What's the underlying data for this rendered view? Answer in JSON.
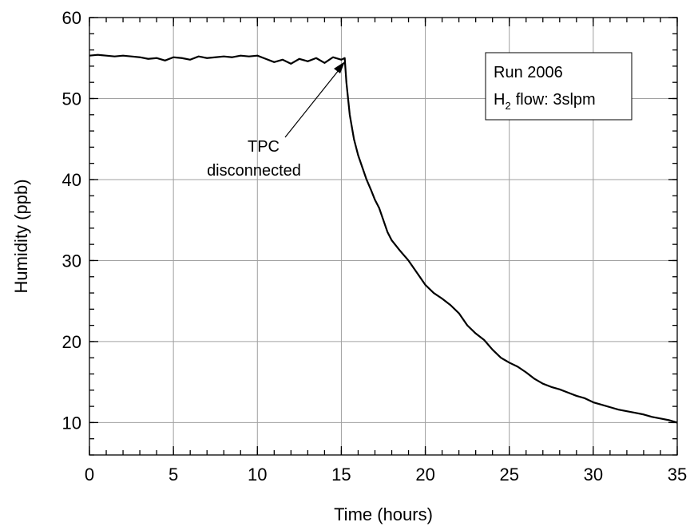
{
  "chart_data": {
    "type": "line",
    "xlabel": "Time (hours)",
    "ylabel": "Humidity (ppb)",
    "annotations": {
      "box_line1": "Run 2006",
      "box_line2_pre": "H",
      "box_line2_sub": "2",
      "box_line2_post": "flow: 3slpm",
      "arrow_line1": "TPC",
      "arrow_line2": "disconnected"
    },
    "xlim": [
      0,
      35
    ],
    "ylim": [
      6,
      60
    ],
    "xticks": [
      0,
      5,
      10,
      15,
      20,
      25,
      30,
      35
    ],
    "yticks": [
      10,
      20,
      30,
      40,
      50,
      60
    ],
    "x_minor_ticks": [
      0,
      1,
      2,
      3,
      4,
      5,
      6,
      7,
      8,
      9,
      10,
      11,
      12,
      13,
      14,
      15,
      16,
      17,
      18,
      19,
      20,
      21,
      22,
      23,
      24,
      25,
      26,
      27,
      28,
      29,
      30,
      31,
      32,
      33,
      34,
      35
    ],
    "y_minor_ticks": [
      6,
      8,
      10,
      12,
      14,
      16,
      18,
      20,
      22,
      24,
      26,
      28,
      30,
      32,
      34,
      36,
      38,
      40,
      42,
      44,
      46,
      48,
      50,
      52,
      54,
      56,
      58,
      60
    ],
    "grid": true,
    "series": [
      {
        "name": "Humidity",
        "color": "#000000",
        "x": [
          0,
          0.5,
          1,
          1.5,
          2,
          2.5,
          3,
          3.5,
          4,
          4.5,
          5,
          5.5,
          6,
          6.5,
          7,
          7.5,
          8,
          8.5,
          9,
          9.5,
          10,
          10.5,
          11,
          11.5,
          12,
          12.5,
          13,
          13.5,
          14,
          14.5,
          15,
          15.2,
          15.3,
          15.5,
          15.75,
          16,
          16.25,
          16.5,
          16.75,
          17,
          17.25,
          17.5,
          17.75,
          18,
          18.5,
          19,
          19.5,
          20,
          20.5,
          21,
          21.5,
          22,
          22.5,
          23,
          23.5,
          24,
          24.5,
          25,
          25.5,
          26,
          26.5,
          27,
          27.5,
          28,
          28.5,
          29,
          29.5,
          30,
          30.5,
          31,
          31.5,
          32,
          32.5,
          33,
          33.5,
          34,
          34.5,
          35
        ],
        "values": [
          55.3,
          55.4,
          55.3,
          55.2,
          55.3,
          55.2,
          55.1,
          54.9,
          55.0,
          54.7,
          55.1,
          55.0,
          54.8,
          55.2,
          55.0,
          55.1,
          55.2,
          55.1,
          55.3,
          55.2,
          55.3,
          54.9,
          54.5,
          54.8,
          54.3,
          54.9,
          54.6,
          55.0,
          54.4,
          55.1,
          54.8,
          55.0,
          52,
          48,
          45,
          43,
          41.5,
          40,
          38.8,
          37.5,
          36.5,
          35,
          33.5,
          32.5,
          31.2,
          30,
          28.5,
          27,
          26,
          25.3,
          24.5,
          23.5,
          22,
          21,
          20.2,
          19,
          18,
          17.4,
          16.9,
          16.2,
          15.4,
          14.8,
          14.4,
          14.1,
          13.7,
          13.3,
          13.0,
          12.5,
          12.2,
          11.9,
          11.6,
          11.4,
          11.2,
          11.0,
          10.7,
          10.5,
          10.3,
          10.0
        ]
      }
    ]
  }
}
